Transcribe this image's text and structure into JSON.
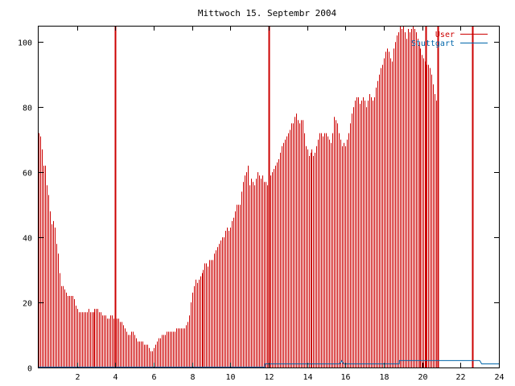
{
  "chart_data": {
    "type": "bar",
    "title": "Mittwoch 15. Septembr 2004",
    "xlabel": "",
    "ylabel": "",
    "xlim": [
      0,
      24
    ],
    "ylim": [
      0,
      105
    ],
    "xticks": [
      2,
      4,
      6,
      8,
      10,
      12,
      14,
      16,
      18,
      20,
      22,
      24
    ],
    "yticks": [
      0,
      20,
      40,
      60,
      80,
      100
    ],
    "legend_position": "top-right",
    "colors": {
      "User": "#cc0000",
      "Stuttgart": "#0066aa",
      "frame": "#000000"
    },
    "series": [
      {
        "name": "User",
        "style": "impulses",
        "x_start": 0,
        "x_step": 0.0833,
        "values": [
          72,
          71,
          67,
          62,
          62,
          56,
          53,
          48,
          44,
          45,
          43,
          38,
          35,
          29,
          25,
          25,
          24,
          23,
          22,
          22,
          22,
          22,
          21,
          19,
          18,
          17,
          17,
          17,
          17,
          17,
          17,
          18,
          17,
          17,
          17,
          18,
          18,
          18,
          17,
          17,
          16,
          16,
          16,
          15,
          15,
          16,
          16,
          15,
          15,
          15,
          15,
          14,
          14,
          13,
          12,
          11,
          10,
          10,
          11,
          11,
          10,
          9,
          8,
          8,
          8,
          8,
          7,
          7,
          7,
          6,
          5,
          5,
          6,
          7,
          8,
          9,
          9,
          10,
          10,
          10,
          11,
          11,
          11,
          11,
          11,
          11,
          12,
          12,
          12,
          12,
          12,
          12,
          13,
          14,
          16,
          20,
          23,
          25,
          27,
          26,
          27,
          28,
          29,
          30,
          32,
          32,
          31,
          33,
          33,
          33,
          35,
          36,
          37,
          38,
          39,
          40,
          40,
          42,
          43,
          42,
          43,
          45,
          46,
          48,
          50,
          50,
          50,
          54,
          57,
          59,
          60,
          62,
          56,
          58,
          57,
          56,
          58,
          60,
          59,
          58,
          59,
          57,
          57,
          56,
          58,
          59,
          60,
          61,
          62,
          63,
          64,
          66,
          68,
          69,
          70,
          71,
          72,
          73,
          75,
          75,
          77,
          78,
          76,
          75,
          76,
          76,
          72,
          68,
          67,
          65,
          66,
          67,
          65,
          66,
          68,
          70,
          72,
          72,
          71,
          72,
          72,
          71,
          70,
          69,
          72,
          77,
          76,
          75,
          72,
          70,
          68,
          69,
          68,
          70,
          72,
          75,
          78,
          80,
          82,
          83,
          83,
          81,
          82,
          83,
          82,
          80,
          82,
          84,
          83,
          82,
          83,
          86,
          88,
          90,
          92,
          93,
          95,
          97,
          98,
          97,
          95,
          94,
          98,
          100,
          102,
          103,
          105,
          104,
          105,
          103,
          101,
          104,
          103,
          104,
          105,
          104,
          103,
          101,
          100,
          98,
          96,
          95,
          94,
          93,
          93,
          92,
          90,
          87,
          84,
          82,
          76
        ],
        "highlight_x": [
          4,
          12,
          20.2,
          20.8,
          22.6
        ]
      },
      {
        "name": "Stuttgart",
        "style": "line",
        "x": [
          0,
          11.8,
          11.8,
          15.7,
          15.8,
          15.9,
          16,
          18.8,
          18.8,
          23,
          23.1,
          24
        ],
        "values": [
          0,
          0,
          1,
          1,
          2,
          1,
          1,
          1,
          2,
          2,
          1,
          1
        ]
      }
    ]
  }
}
